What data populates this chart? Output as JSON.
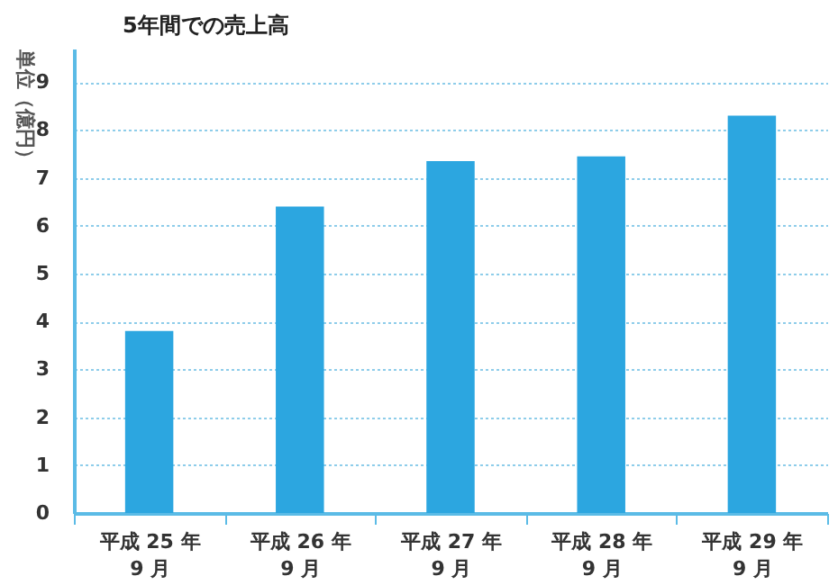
{
  "chart_data": {
    "type": "bar",
    "title": "5年間での売上高",
    "ylabel": "単位（億円）",
    "categories": [
      "平成 25 年\n9 月",
      "平成 26 年\n9 月",
      "平成 27 年\n9 月",
      "平成 28 年\n9 月",
      "平成 29 年\n9 月"
    ],
    "values": [
      3.8,
      6.4,
      7.35,
      7.45,
      8.3
    ],
    "color": "#2ca6e0",
    "ylim": [
      0,
      9.7
    ],
    "yticks": [
      0,
      1,
      2,
      3,
      4,
      5,
      6,
      7,
      8,
      9
    ],
    "grid": "y"
  }
}
